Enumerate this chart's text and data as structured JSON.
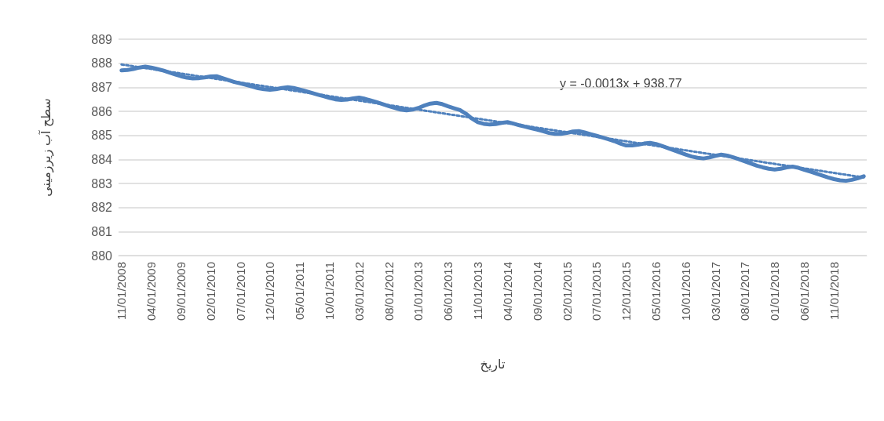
{
  "chart_data": {
    "type": "line",
    "xlabel": "تاریخ",
    "ylabel": "سطح آب زیرزمینی",
    "categories": [
      "11/01/2008",
      null,
      null,
      null,
      null,
      "04/01/2009",
      null,
      null,
      null,
      null,
      "09/01/2009",
      null,
      null,
      null,
      null,
      "02/01/2010",
      null,
      null,
      null,
      null,
      "07/01/2010",
      null,
      null,
      null,
      null,
      "12/01/2010",
      null,
      null,
      null,
      null,
      "05/01/2011",
      null,
      null,
      null,
      null,
      "10/01/2011",
      null,
      null,
      null,
      null,
      "03/01/2012",
      null,
      null,
      null,
      null,
      "08/01/2012",
      null,
      null,
      null,
      null,
      "01/01/2013",
      null,
      null,
      null,
      null,
      "06/01/2013",
      null,
      null,
      null,
      null,
      "11/01/2013",
      null,
      null,
      null,
      null,
      "04/01/2014",
      null,
      null,
      null,
      null,
      "09/01/2014",
      null,
      null,
      null,
      null,
      "02/01/2015",
      null,
      null,
      null,
      null,
      "07/01/2015",
      null,
      null,
      null,
      null,
      "12/01/2015",
      null,
      null,
      null,
      null,
      "05/01/2016",
      null,
      null,
      null,
      null,
      "10/01/2016",
      null,
      null,
      null,
      null,
      "03/01/2017",
      null,
      null,
      null,
      null,
      "08/01/2017",
      null,
      null,
      null,
      null,
      "01/01/2018",
      null,
      null,
      null,
      null,
      "06/01/2018",
      null,
      null,
      null,
      null,
      "11/01/2018",
      null,
      null,
      null,
      null,
      null
    ],
    "series": [
      {
        "color": "#4f81bd",
        "line_style": "solid",
        "values": [
          887.7,
          887.72,
          887.76,
          887.82,
          887.86,
          887.82,
          887.76,
          887.7,
          887.62,
          887.54,
          887.46,
          887.4,
          887.37,
          887.38,
          887.41,
          887.45,
          887.46,
          887.38,
          887.3,
          887.22,
          887.16,
          887.1,
          887.03,
          886.96,
          886.92,
          886.9,
          886.92,
          886.97,
          887.0,
          886.97,
          886.91,
          886.84,
          886.77,
          886.7,
          886.63,
          886.56,
          886.5,
          886.47,
          886.49,
          886.54,
          886.57,
          886.52,
          886.45,
          886.38,
          886.3,
          886.22,
          886.14,
          886.07,
          886.04,
          886.07,
          886.14,
          886.24,
          886.32,
          886.35,
          886.3,
          886.21,
          886.13,
          886.05,
          885.9,
          885.7,
          885.55,
          885.48,
          885.45,
          885.47,
          885.52,
          885.55,
          885.49,
          885.42,
          885.36,
          885.3,
          885.24,
          885.17,
          885.1,
          885.06,
          885.06,
          885.1,
          885.16,
          885.18,
          885.12,
          885.05,
          884.98,
          884.91,
          884.84,
          884.76,
          884.66,
          884.58,
          884.58,
          884.61,
          884.66,
          884.69,
          884.64,
          884.56,
          884.47,
          884.38,
          884.29,
          884.2,
          884.12,
          884.07,
          884.04,
          884.08,
          884.15,
          884.2,
          884.16,
          884.09,
          884.01,
          883.92,
          883.83,
          883.74,
          883.67,
          883.61,
          883.58,
          883.61,
          883.67,
          883.7,
          883.65,
          883.57,
          883.49,
          883.41,
          883.33,
          883.25,
          883.18,
          883.13,
          883.11,
          883.15,
          883.22,
          883.3
        ]
      },
      {
        "color": "#4f81bd",
        "line_style": "dotted",
        "values": [
          887.95,
          null,
          null,
          null,
          null,
          null,
          null,
          null,
          null,
          null,
          null,
          null,
          null,
          null,
          null,
          null,
          null,
          null,
          null,
          null,
          null,
          null,
          null,
          null,
          null,
          null,
          null,
          null,
          null,
          null,
          null,
          null,
          null,
          null,
          null,
          null,
          null,
          null,
          null,
          null,
          null,
          null,
          null,
          null,
          null,
          null,
          null,
          null,
          null,
          null,
          null,
          null,
          null,
          null,
          null,
          null,
          null,
          null,
          null,
          null,
          null,
          null,
          null,
          null,
          null,
          null,
          null,
          null,
          null,
          null,
          null,
          null,
          null,
          null,
          null,
          null,
          null,
          null,
          null,
          null,
          null,
          null,
          null,
          null,
          null,
          null,
          null,
          null,
          null,
          null,
          null,
          null,
          null,
          null,
          null,
          null,
          null,
          null,
          null,
          null,
          null,
          null,
          null,
          null,
          null,
          null,
          null,
          null,
          null,
          null,
          null,
          null,
          null,
          null,
          null,
          null,
          null,
          null,
          null,
          null,
          null,
          null,
          null,
          null,
          null,
          883.25
        ]
      }
    ],
    "ylim": [
      880,
      889
    ],
    "yticks": [
      880,
      881,
      882,
      883,
      884,
      885,
      886,
      887,
      888,
      889
    ],
    "grid": "y",
    "marker": "none",
    "annotations": [
      "y = -0.0013x + 938.77"
    ]
  }
}
